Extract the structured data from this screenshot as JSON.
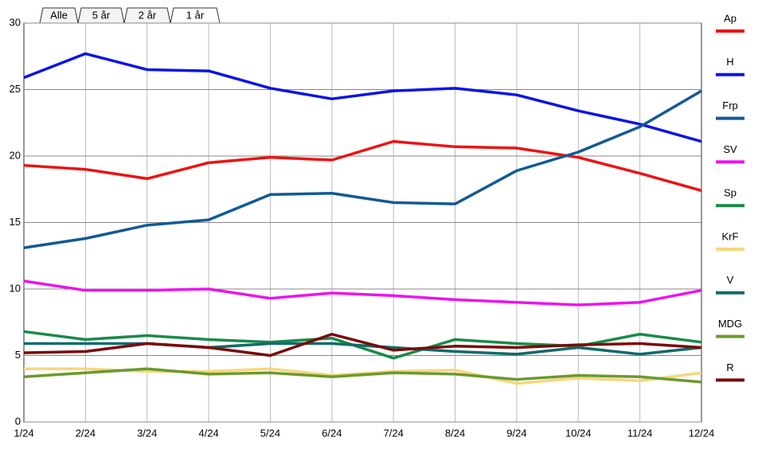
{
  "tabs": [
    "Alle",
    "5 år",
    "2 år",
    "1 år"
  ],
  "selected_tab": 3,
  "chart_data": {
    "type": "line",
    "categories": [
      "1/24",
      "2/24",
      "3/24",
      "4/24",
      "5/24",
      "6/24",
      "7/24",
      "8/24",
      "9/24",
      "10/24",
      "11/24",
      "12/24"
    ],
    "ylim": [
      0,
      30
    ],
    "yticks": [
      0,
      5,
      10,
      15,
      20,
      25,
      30
    ],
    "grid": true,
    "series": [
      {
        "name": "Ap",
        "color": "#ee1111",
        "values": [
          19.3,
          19.0,
          18.3,
          19.5,
          19.9,
          19.7,
          21.1,
          20.7,
          20.6,
          19.9,
          18.7,
          17.4
        ]
      },
      {
        "name": "H",
        "color": "#0a14e6",
        "values": [
          25.9,
          27.7,
          26.5,
          26.4,
          25.1,
          24.3,
          24.9,
          25.1,
          24.6,
          23.4,
          22.4,
          21.1
        ]
      },
      {
        "name": "Frp",
        "color": "#115a94",
        "values": [
          13.1,
          13.8,
          14.8,
          15.2,
          17.1,
          17.2,
          16.5,
          16.4,
          18.9,
          20.3,
          22.2,
          24.9
        ]
      },
      {
        "name": "SV",
        "color": "#ee11ee",
        "values": [
          10.6,
          9.9,
          9.9,
          10.0,
          9.3,
          9.7,
          9.5,
          9.2,
          9.0,
          8.8,
          9.0,
          9.9
        ]
      },
      {
        "name": "Sp",
        "color": "#1a8a4a",
        "values": [
          6.8,
          6.2,
          6.5,
          6.2,
          6.0,
          6.3,
          4.8,
          6.2,
          5.9,
          5.7,
          6.6,
          6.0
        ]
      },
      {
        "name": "KrF",
        "color": "#f7d67e",
        "values": [
          4.0,
          4.0,
          3.8,
          3.8,
          4.0,
          3.5,
          3.8,
          3.9,
          2.9,
          3.3,
          3.1,
          3.7
        ]
      },
      {
        "name": "V",
        "color": "#116b6b",
        "values": [
          5.9,
          5.9,
          5.9,
          5.6,
          5.9,
          5.9,
          5.6,
          5.3,
          5.1,
          5.6,
          5.1,
          5.6
        ]
      },
      {
        "name": "MDG",
        "color": "#6a9a2e",
        "values": [
          3.4,
          3.7,
          4.0,
          3.6,
          3.7,
          3.4,
          3.7,
          3.6,
          3.2,
          3.5,
          3.4,
          3.0
        ]
      },
      {
        "name": "R",
        "color": "#7a0a0a",
        "values": [
          5.2,
          5.3,
          5.9,
          5.6,
          5.0,
          6.6,
          5.4,
          5.7,
          5.6,
          5.8,
          5.9,
          5.6
        ]
      }
    ]
  }
}
